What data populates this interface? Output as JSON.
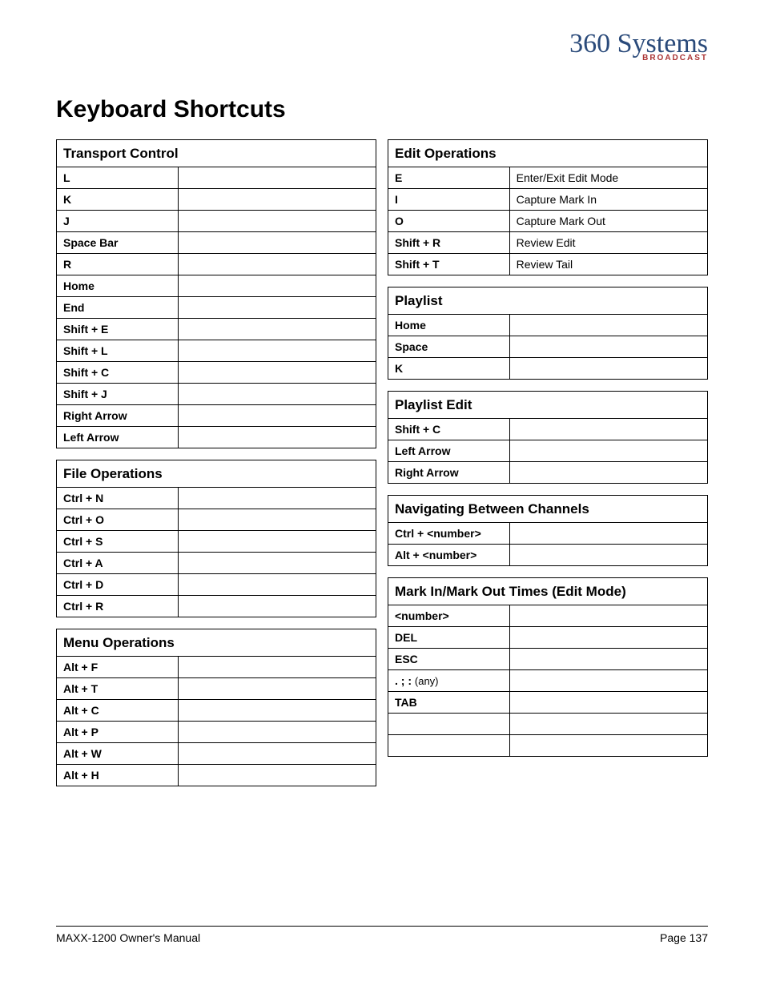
{
  "logo": {
    "main": "360 Systems",
    "sub": "BROADCAST"
  },
  "title": "Keyboard Shortcuts",
  "footer": {
    "left": "MAXX-1200 Owner's Manual",
    "right": "Page 137"
  },
  "left_tables": [
    {
      "header": "Transport Control",
      "rows": [
        {
          "k": "L",
          "d": ""
        },
        {
          "k": "K",
          "d": ""
        },
        {
          "k": "J",
          "d": ""
        },
        {
          "k": "Space Bar",
          "d": ""
        },
        {
          "k": "R",
          "d": ""
        },
        {
          "k": "Home",
          "d": ""
        },
        {
          "k": "End",
          "d": ""
        },
        {
          "k": "Shift + E",
          "d": ""
        },
        {
          "k": "Shift + L",
          "d": ""
        },
        {
          "k": "Shift + C",
          "d": ""
        },
        {
          "k": "Shift + J",
          "d": ""
        },
        {
          "k": "Right Arrow",
          "d": ""
        },
        {
          "k": "Left Arrow",
          "d": ""
        }
      ]
    },
    {
      "header": "File Operations",
      "rows": [
        {
          "k": "Ctrl + N",
          "d": ""
        },
        {
          "k": "Ctrl + O",
          "d": ""
        },
        {
          "k": "Ctrl + S",
          "d": "",
          "tall": true
        },
        {
          "k": "Ctrl + A",
          "d": "",
          "tall": true
        },
        {
          "k": "Ctrl + D",
          "d": ""
        },
        {
          "k": "Ctrl + R",
          "d": ""
        }
      ]
    },
    {
      "header": "Menu Operations",
      "rows": [
        {
          "k": "Alt + F",
          "d": ""
        },
        {
          "k": "Alt + T",
          "d": ""
        },
        {
          "k": "Alt + C",
          "d": "",
          "tall": true
        },
        {
          "k": "Alt + P",
          "d": ""
        },
        {
          "k": "Alt + W",
          "d": ""
        },
        {
          "k": "Alt + H",
          "d": ""
        }
      ]
    }
  ],
  "right_tables": [
    {
      "header": "Edit Operations",
      "rows": [
        {
          "k": "E",
          "d": "Enter/Exit Edit Mode"
        },
        {
          "k": "I",
          "d": "Capture Mark In"
        },
        {
          "k": "O",
          "d": "Capture Mark Out"
        },
        {
          "k": "Shift + R",
          "d": "Review Edit"
        },
        {
          "k": "Shift + T",
          "d": "Review Tail"
        }
      ]
    },
    {
      "header": "Playlist",
      "rows": [
        {
          "k": "Home",
          "d": ""
        },
        {
          "k": "Space",
          "d": ""
        },
        {
          "k": "K",
          "d": ""
        }
      ]
    },
    {
      "header": "Playlist Edit",
      "rows": [
        {
          "k": "Shift + C",
          "d": ""
        },
        {
          "k": "Left Arrow",
          "d": ""
        },
        {
          "k": "Right Arrow",
          "d": ""
        }
      ]
    },
    {
      "header": "Navigating Between Channels",
      "rows": [
        {
          "k": "Ctrl + <number>",
          "d": "",
          "tall": true
        },
        {
          "k": "Alt + <number>",
          "d": "",
          "tall": true
        }
      ]
    },
    {
      "header": "Mark In/Mark Out Times (Edit Mode)",
      "rows": [
        {
          "k": "<number>",
          "d": ""
        },
        {
          "k": "DEL",
          "d": ""
        },
        {
          "k": "ESC",
          "d": ""
        },
        {
          "k": ".  ;  :  (any)",
          "d": "",
          "any": true
        },
        {
          "k": "TAB",
          "d": "",
          "tall": true
        },
        {
          "k": "",
          "d": ""
        },
        {
          "k": "",
          "d": ""
        }
      ]
    }
  ]
}
